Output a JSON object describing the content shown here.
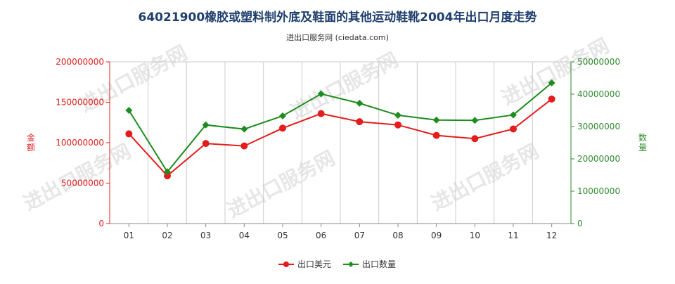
{
  "title": "64021900橡胶或塑料制外底及鞋面的其他运动鞋靴2004年出口月度走势",
  "subtitle": "进出口服务网 (ciedata.com)",
  "watermark": "进出口服务网",
  "chart_data": {
    "type": "line",
    "categories": [
      "01",
      "02",
      "03",
      "04",
      "05",
      "06",
      "07",
      "08",
      "09",
      "10",
      "11",
      "12"
    ],
    "y_left": {
      "label": "金额",
      "range": [
        0,
        200000000
      ],
      "ticks": [
        "0",
        "50000000",
        "100000000",
        "150000000",
        "200000000"
      ],
      "color": "#e02020"
    },
    "y_right": {
      "label": "数量",
      "range": [
        0,
        50000000
      ],
      "ticks": [
        "0",
        "10000000",
        "20000000",
        "30000000",
        "40000000",
        "50000000"
      ],
      "color": "#2e8b2e"
    },
    "series": [
      {
        "name": "出口美元",
        "axis": "left",
        "color": "#e51c1c",
        "marker": "circle",
        "values": [
          111000000,
          59000000,
          99000000,
          96000000,
          118000000,
          136000000,
          126000000,
          122000000,
          109000000,
          105000000,
          117000000,
          154000000
        ]
      },
      {
        "name": "出口数量",
        "axis": "right",
        "color": "#1e8c1e",
        "marker": "diamond",
        "values": [
          35000000,
          16000000,
          30500000,
          29200000,
          33300000,
          40100000,
          37200000,
          33500000,
          32000000,
          31900000,
          33600000,
          43500000
        ]
      }
    ],
    "grid": "vertical",
    "legend_position": "bottom-center"
  }
}
